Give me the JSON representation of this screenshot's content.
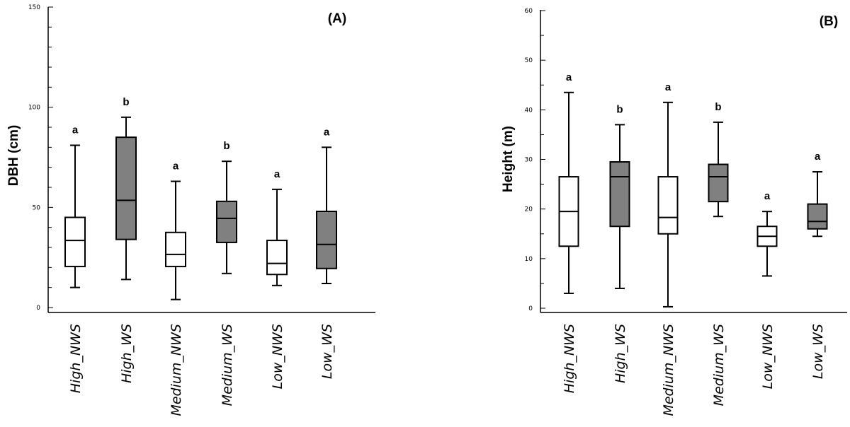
{
  "chart_data": [
    {
      "type": "box",
      "panel_label": "(A)",
      "ylabel": "DBH (cm)",
      "xlabel": "",
      "ylim": [
        0,
        150
      ],
      "yticks": [
        "0",
        "50",
        "100",
        "150"
      ],
      "categories": [
        "High_NWS",
        "High_WS",
        "Medium_NWS",
        "Medium_WS",
        "Low_NWS",
        "Low_WS"
      ],
      "boxes": [
        {
          "category": "High_NWS",
          "min": 10,
          "q1": 20.5,
          "median": 33.5,
          "q3": 45,
          "max": 81,
          "fill": "#ffffff",
          "letter": "a"
        },
        {
          "category": "High_WS",
          "min": 14,
          "q1": 34,
          "median": 53.5,
          "q3": 85,
          "max": 95,
          "fill": "#808080",
          "letter": "b"
        },
        {
          "category": "Medium_NWS",
          "min": 4,
          "q1": 20.5,
          "median": 26.5,
          "q3": 37.5,
          "max": 63,
          "fill": "#ffffff",
          "letter": "a"
        },
        {
          "category": "Medium_WS",
          "min": 17,
          "q1": 32.5,
          "median": 44.5,
          "q3": 53,
          "max": 73,
          "fill": "#808080",
          "letter": "b"
        },
        {
          "category": "Low_NWS",
          "min": 11,
          "q1": 16.5,
          "median": 22,
          "q3": 33.5,
          "max": 59,
          "fill": "#ffffff",
          "letter": "a"
        },
        {
          "category": "Low_WS",
          "min": 12,
          "q1": 19.5,
          "median": 31.5,
          "q3": 48,
          "max": 80,
          "fill": "#808080",
          "letter": "a"
        }
      ]
    },
    {
      "type": "box",
      "panel_label": "(B)",
      "ylabel": "Height (m)",
      "xlabel": "",
      "ylim": [
        0,
        60
      ],
      "yticks": [
        "0",
        "10",
        "20",
        "30",
        "40",
        "50",
        "60"
      ],
      "categories": [
        "High_NWS",
        "High_WS",
        "Medium_NWS",
        "Medium_WS",
        "Low_NWS",
        "Low_WS"
      ],
      "boxes": [
        {
          "category": "High_NWS",
          "min": 3,
          "q1": 12.5,
          "median": 19.5,
          "q3": 26.5,
          "max": 43.5,
          "fill": "#ffffff",
          "letter": "a"
        },
        {
          "category": "High_WS",
          "min": 4,
          "q1": 16.5,
          "median": 26.5,
          "q3": 29.5,
          "max": 37,
          "fill": "#808080",
          "letter": "b"
        },
        {
          "category": "Medium_NWS",
          "min": 0.3,
          "q1": 15,
          "median": 18.3,
          "q3": 26.5,
          "max": 41.5,
          "fill": "#ffffff",
          "letter": "a"
        },
        {
          "category": "Medium_WS",
          "min": 18.5,
          "q1": 21.5,
          "median": 26.5,
          "q3": 29,
          "max": 37.5,
          "fill": "#808080",
          "letter": "b"
        },
        {
          "category": "Low_NWS",
          "min": 6.5,
          "q1": 12.5,
          "median": 14.5,
          "q3": 16.5,
          "max": 19.5,
          "fill": "#ffffff",
          "letter": "a"
        },
        {
          "category": "Low_WS",
          "min": 14.5,
          "q1": 16,
          "median": 17.5,
          "q3": 21,
          "max": 27.5,
          "fill": "#808080",
          "letter": "a"
        }
      ]
    }
  ]
}
